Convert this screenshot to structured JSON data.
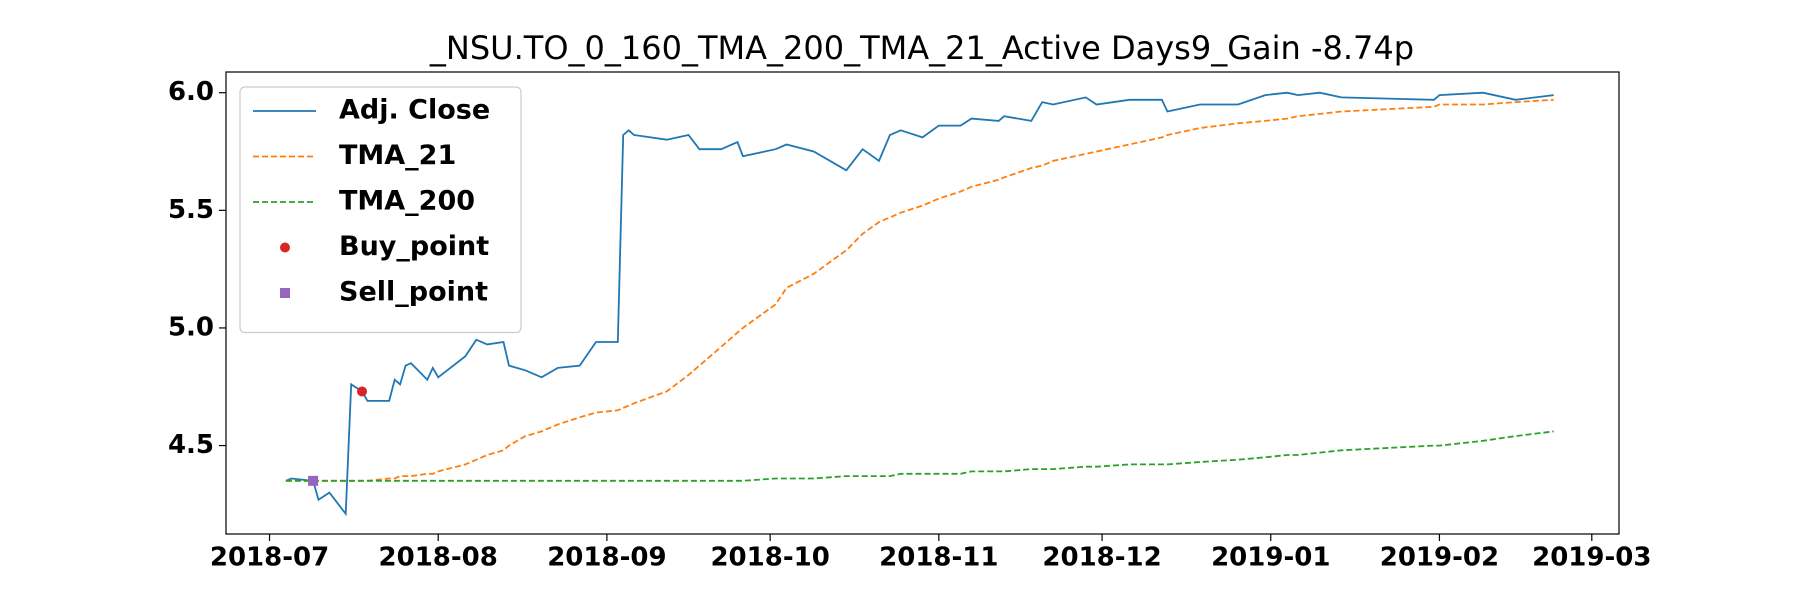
{
  "chart_data": {
    "type": "line",
    "title": "_NSU.TO_0_160_TMA_200_TMA_21_Active Days9_Gain  -8.74p",
    "x": [
      "2018-07-04",
      "2018-07-05",
      "2018-07-09",
      "2018-07-10",
      "2018-07-12",
      "2018-07-15",
      "2018-07-16",
      "2018-07-18",
      "2018-07-19",
      "2018-07-23",
      "2018-07-24",
      "2018-07-25",
      "2018-07-26",
      "2018-07-27",
      "2018-07-30",
      "2018-07-31",
      "2018-08-01",
      "2018-08-06",
      "2018-08-08",
      "2018-08-10",
      "2018-08-13",
      "2018-08-14",
      "2018-08-17",
      "2018-08-20",
      "2018-08-23",
      "2018-08-27",
      "2018-08-30",
      "2018-09-03",
      "2018-09-04",
      "2018-09-05",
      "2018-09-06",
      "2018-09-12",
      "2018-09-16",
      "2018-09-18",
      "2018-09-22",
      "2018-09-25",
      "2018-09-26",
      "2018-10-02",
      "2018-10-04",
      "2018-10-09",
      "2018-10-15",
      "2018-10-18",
      "2018-10-21",
      "2018-10-23",
      "2018-10-25",
      "2018-10-29",
      "2018-11-01",
      "2018-11-05",
      "2018-11-07",
      "2018-11-12",
      "2018-11-13",
      "2018-11-18",
      "2018-11-20",
      "2018-11-22",
      "2018-11-28",
      "2018-11-30",
      "2018-12-06",
      "2018-12-12",
      "2018-12-13",
      "2018-12-19",
      "2018-12-26",
      "2018-12-31",
      "2019-01-04",
      "2019-01-06",
      "2019-01-10",
      "2019-01-14",
      "2019-01-31",
      "2019-02-01",
      "2019-02-09",
      "2019-02-15",
      "2019-02-22"
    ],
    "series": [
      {
        "name": "Adj. Close",
        "color": "#1f77b4",
        "dash": false,
        "values": [
          4.35,
          4.36,
          4.35,
          4.27,
          4.3,
          4.21,
          4.76,
          4.73,
          4.69,
          4.69,
          4.78,
          4.76,
          4.84,
          4.85,
          4.78,
          4.83,
          4.79,
          4.88,
          4.95,
          4.93,
          4.94,
          4.84,
          4.82,
          4.79,
          4.83,
          4.84,
          4.94,
          4.94,
          5.82,
          5.84,
          5.82,
          5.8,
          5.82,
          5.76,
          5.76,
          5.79,
          5.73,
          5.76,
          5.78,
          5.75,
          5.67,
          5.76,
          5.71,
          5.82,
          5.84,
          5.81,
          5.86,
          5.86,
          5.89,
          5.88,
          5.9,
          5.88,
          5.96,
          5.95,
          5.98,
          5.95,
          5.97,
          5.97,
          5.92,
          5.95,
          5.95,
          5.99,
          6.0,
          5.99,
          6.0,
          5.98,
          5.97,
          5.99,
          6.0,
          5.97,
          5.99
        ]
      },
      {
        "name": "TMA_21",
        "color": "#ff7f0e",
        "dash": true,
        "values": [
          4.35,
          4.35,
          4.35,
          4.35,
          4.35,
          4.35,
          4.35,
          4.35,
          4.35,
          4.36,
          4.36,
          4.37,
          4.37,
          4.37,
          4.38,
          4.38,
          4.39,
          4.42,
          4.44,
          4.46,
          4.48,
          4.5,
          4.54,
          4.56,
          4.59,
          4.62,
          4.64,
          4.65,
          4.66,
          4.67,
          4.68,
          4.73,
          4.8,
          4.84,
          4.92,
          4.98,
          5.0,
          5.1,
          5.17,
          5.23,
          5.33,
          5.4,
          5.45,
          5.47,
          5.49,
          5.52,
          5.55,
          5.58,
          5.6,
          5.63,
          5.64,
          5.68,
          5.69,
          5.71,
          5.74,
          5.75,
          5.78,
          5.81,
          5.82,
          5.85,
          5.87,
          5.88,
          5.89,
          5.9,
          5.91,
          5.92,
          5.94,
          5.95,
          5.95,
          5.96,
          5.97
        ]
      },
      {
        "name": "TMA_200",
        "color": "#2ca02c",
        "dash": true,
        "values": [
          4.35,
          4.35,
          4.35,
          4.35,
          4.35,
          4.35,
          4.35,
          4.35,
          4.35,
          4.35,
          4.35,
          4.35,
          4.35,
          4.35,
          4.35,
          4.35,
          4.35,
          4.35,
          4.35,
          4.35,
          4.35,
          4.35,
          4.35,
          4.35,
          4.35,
          4.35,
          4.35,
          4.35,
          4.35,
          4.35,
          4.35,
          4.35,
          4.35,
          4.35,
          4.35,
          4.35,
          4.35,
          4.36,
          4.36,
          4.36,
          4.37,
          4.37,
          4.37,
          4.37,
          4.38,
          4.38,
          4.38,
          4.38,
          4.39,
          4.39,
          4.39,
          4.4,
          4.4,
          4.4,
          4.41,
          4.41,
          4.42,
          4.42,
          4.42,
          4.43,
          4.44,
          4.45,
          4.46,
          4.46,
          4.47,
          4.48,
          4.5,
          4.5,
          4.52,
          4.54,
          4.56
        ]
      }
    ],
    "points": [
      {
        "name": "Buy_point",
        "color": "#d62728",
        "marker": "circle",
        "x": [
          "2018-07-18"
        ],
        "values": [
          4.73
        ]
      },
      {
        "name": "Sell_point",
        "color": "#9467bd",
        "marker": "square",
        "x": [
          "2018-07-09"
        ],
        "values": [
          4.35
        ]
      }
    ],
    "xlim": [
      "2018-06-23",
      "2019-03-06"
    ],
    "xticks": [
      {
        "value": "2018-07-01",
        "label": "2018-07"
      },
      {
        "value": "2018-08-01",
        "label": "2018-08"
      },
      {
        "value": "2018-09-01",
        "label": "2018-09"
      },
      {
        "value": "2018-10-01",
        "label": "2018-10"
      },
      {
        "value": "2018-11-01",
        "label": "2018-11"
      },
      {
        "value": "2018-12-01",
        "label": "2018-12"
      },
      {
        "value": "2019-01-01",
        "label": "2019-01"
      },
      {
        "value": "2019-02-01",
        "label": "2019-02"
      },
      {
        "value": "2019-03-01",
        "label": "2019-03"
      }
    ],
    "ylim": [
      4.124,
      6.088
    ],
    "yticks": [
      {
        "value": 4.5,
        "label": "4.5"
      },
      {
        "value": 5.0,
        "label": "5.0"
      },
      {
        "value": 5.5,
        "label": "5.5"
      },
      {
        "value": 6.0,
        "label": "6.0"
      }
    ],
    "legend": "upper left",
    "grid": false
  }
}
